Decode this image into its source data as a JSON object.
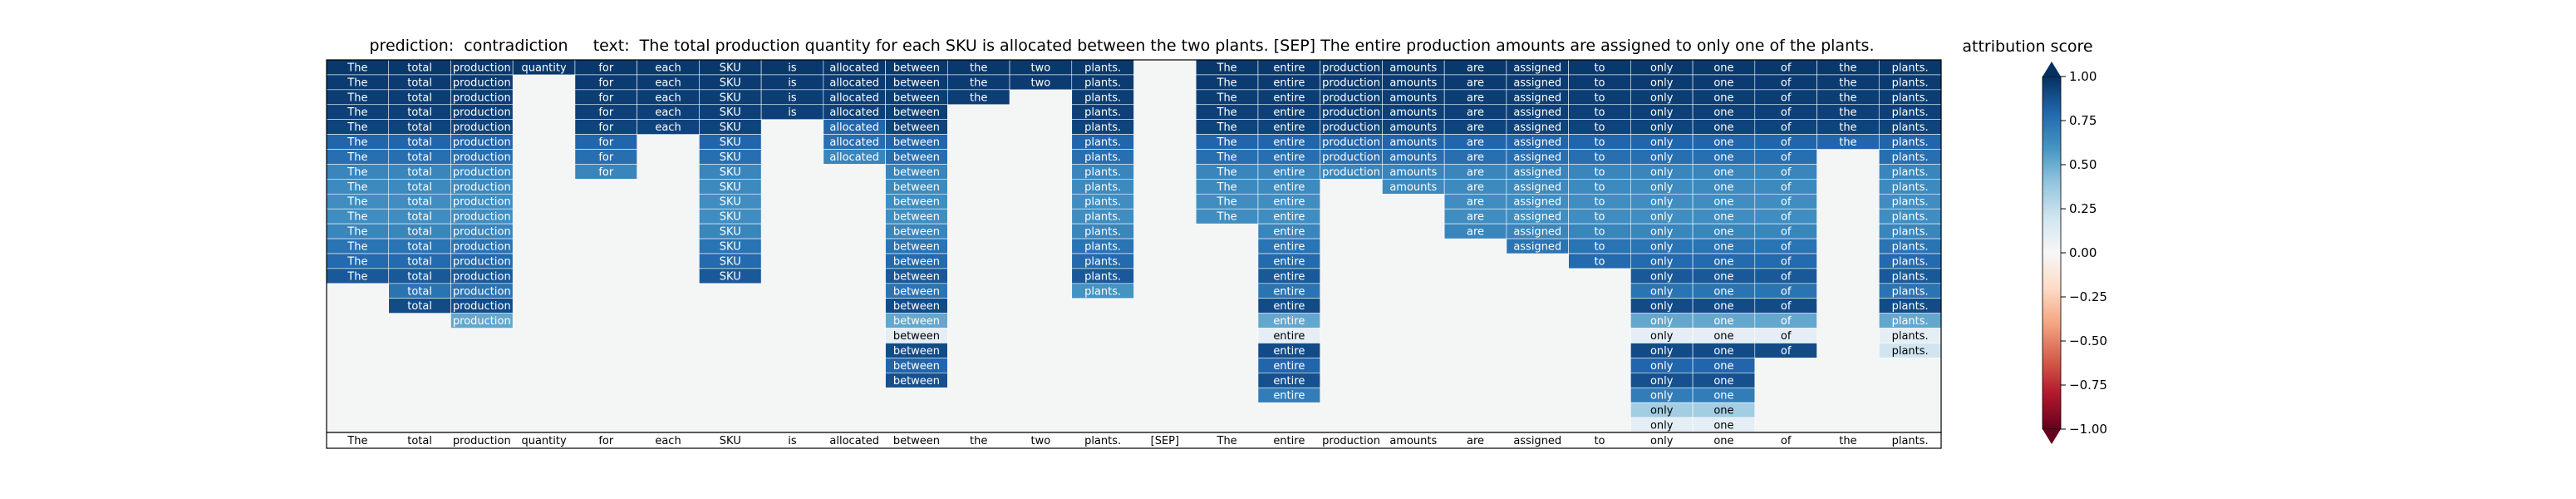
{
  "chart_data": {
    "type": "heatmap",
    "title": "prediction:  contradiction     text:  The total production quantity for each SKU is allocated between the two plants. [SEP] The entire production amounts are assigned to only one of the plants.",
    "tokens": [
      "The",
      "total",
      "production",
      "quantity",
      "for",
      "each",
      "SKU",
      "is",
      "allocated",
      "between",
      "the",
      "two",
      "plants.",
      "[SEP]",
      "The",
      "entire",
      "production",
      "amounts",
      "are",
      "assigned",
      "to",
      "only",
      "one",
      "of",
      "the",
      "plants."
    ],
    "n_rows": 25,
    "cell_note": "each column lists, from the top row, the attribution score of every row in which the token is shown",
    "column_scores": [
      [
        0.97,
        0.96,
        0.95,
        0.94,
        0.93,
        0.8,
        0.76,
        0.66,
        0.64,
        0.62,
        0.62,
        0.66,
        0.74,
        0.78,
        0.85
      ],
      [
        0.97,
        0.96,
        0.95,
        0.94,
        0.93,
        0.8,
        0.76,
        0.66,
        0.64,
        0.62,
        0.62,
        0.66,
        0.74,
        0.78,
        0.85,
        0.74,
        0.9
      ],
      [
        0.97,
        0.96,
        0.95,
        0.94,
        0.93,
        0.8,
        0.76,
        0.66,
        0.64,
        0.62,
        0.62,
        0.66,
        0.74,
        0.78,
        0.85,
        0.74,
        0.9,
        0.52
      ],
      [
        0.97
      ],
      [
        0.97,
        0.96,
        0.95,
        0.94,
        0.93,
        0.8,
        0.76,
        0.66
      ],
      [
        0.97,
        0.96,
        0.95,
        0.94,
        0.93
      ],
      [
        0.97,
        0.96,
        0.95,
        0.94,
        0.93,
        0.8,
        0.76,
        0.66,
        0.64,
        0.62,
        0.62,
        0.66,
        0.74,
        0.78,
        0.85
      ],
      [
        0.97,
        0.96,
        0.95,
        0.94
      ],
      [
        0.97,
        0.96,
        0.95,
        0.94,
        0.8,
        0.76,
        0.66
      ],
      [
        0.97,
        0.96,
        0.95,
        0.94,
        0.93,
        0.8,
        0.76,
        0.66,
        0.64,
        0.62,
        0.62,
        0.66,
        0.74,
        0.78,
        0.85,
        0.74,
        0.9,
        0.52,
        0.1,
        0.9,
        0.8,
        0.88
      ],
      [
        0.97,
        0.96,
        0.95
      ],
      [
        0.97,
        0.96
      ],
      [
        0.97,
        0.96,
        0.95,
        0.94,
        0.93,
        0.8,
        0.76,
        0.66,
        0.64,
        0.62,
        0.62,
        0.66,
        0.74,
        0.78,
        0.85,
        0.6
      ],
      [],
      [
        0.97,
        0.96,
        0.95,
        0.94,
        0.93,
        0.8,
        0.76,
        0.66,
        0.64,
        0.62,
        0.62
      ],
      [
        0.97,
        0.96,
        0.95,
        0.94,
        0.93,
        0.8,
        0.76,
        0.66,
        0.64,
        0.62,
        0.62,
        0.66,
        0.74,
        0.78,
        0.85,
        0.74,
        0.9,
        0.52,
        0.1,
        0.9,
        0.8,
        0.88,
        0.7
      ],
      [
        0.97,
        0.96,
        0.95,
        0.94,
        0.93,
        0.8,
        0.76,
        0.66
      ],
      [
        0.97,
        0.96,
        0.95,
        0.94,
        0.93,
        0.8,
        0.76,
        0.66,
        0.64
      ],
      [
        0.97,
        0.96,
        0.95,
        0.94,
        0.93,
        0.8,
        0.76,
        0.66,
        0.64,
        0.62,
        0.62,
        0.66
      ],
      [
        0.97,
        0.96,
        0.95,
        0.94,
        0.93,
        0.8,
        0.76,
        0.66,
        0.64,
        0.62,
        0.62,
        0.66,
        0.74
      ],
      [
        0.97,
        0.96,
        0.95,
        0.94,
        0.93,
        0.8,
        0.76,
        0.66,
        0.64,
        0.62,
        0.62,
        0.66,
        0.74,
        0.78
      ],
      [
        0.97,
        0.96,
        0.95,
        0.94,
        0.93,
        0.8,
        0.76,
        0.66,
        0.64,
        0.62,
        0.62,
        0.66,
        0.74,
        0.78,
        0.85,
        0.74,
        0.9,
        0.52,
        0.1,
        0.9,
        0.8,
        0.88,
        0.7,
        0.35,
        0.1
      ],
      [
        0.97,
        0.96,
        0.95,
        0.94,
        0.93,
        0.8,
        0.76,
        0.66,
        0.64,
        0.62,
        0.62,
        0.66,
        0.74,
        0.78,
        0.85,
        0.74,
        0.9,
        0.52,
        0.1,
        0.9,
        0.8,
        0.88,
        0.7,
        0.35,
        0.1
      ],
      [
        0.97,
        0.96,
        0.95,
        0.94,
        0.93,
        0.8,
        0.76,
        0.66,
        0.64,
        0.62,
        0.62,
        0.66,
        0.74,
        0.78,
        0.85,
        0.74,
        0.9,
        0.52,
        0.1,
        0.9
      ],
      [
        0.97,
        0.96,
        0.95,
        0.94,
        0.93,
        0.8
      ],
      [
        0.97,
        0.96,
        0.95,
        0.94,
        0.93,
        0.8,
        0.76,
        0.66,
        0.64,
        0.62,
        0.62,
        0.66,
        0.74,
        0.78,
        0.85,
        0.74,
        0.9,
        0.52,
        0.1,
        0.2
      ]
    ],
    "colorbar": {
      "label": "attribution score",
      "range": [
        -1.0,
        1.0
      ],
      "ticks": [
        "1.00",
        "0.75",
        "0.50",
        "0.25",
        "0.00",
        "−0.25",
        "−0.50",
        "−0.75",
        "−1.00"
      ],
      "colormap": [
        "#67001f",
        "#b2182b",
        "#d6604d",
        "#f4a582",
        "#fddbc7",
        "#f7f7f7",
        "#d1e5f0",
        "#92c5de",
        "#4393c3",
        "#2166ac",
        "#053061"
      ]
    },
    "empty_color": "#f4f6f6"
  }
}
